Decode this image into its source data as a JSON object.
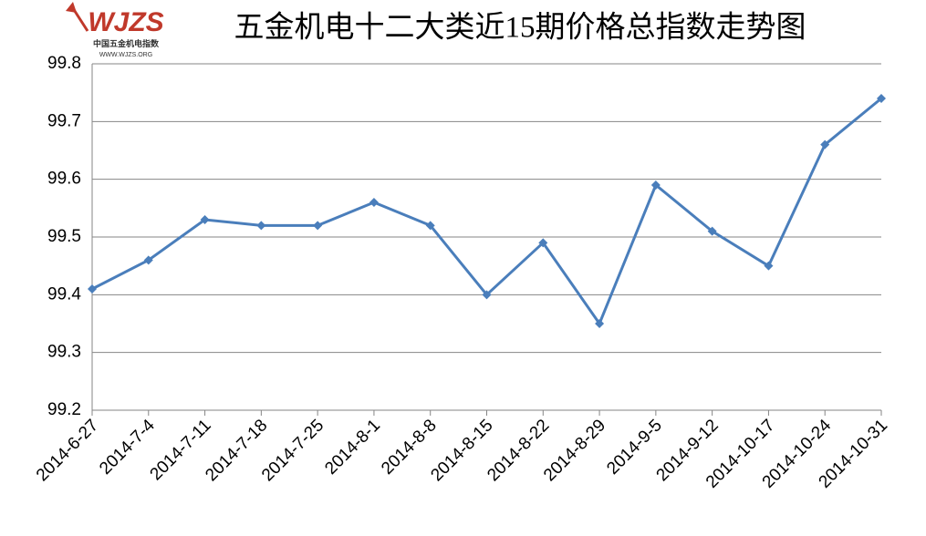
{
  "chart_data": {
    "type": "line",
    "title": "五金机电十二大类近15期价格总指数走势图",
    "logo_text": "WJZS",
    "logo_subtitle": "中国五金机电指数",
    "logo_url": "WWW.WJZS.ORG",
    "categories": [
      "2014-6-27",
      "2014-7-4",
      "2014-7-11",
      "2014-7-18",
      "2014-7-25",
      "2014-8-1",
      "2014-8-8",
      "2014-8-15",
      "2014-8-22",
      "2014-8-29",
      "2014-9-5",
      "2014-9-12",
      "2014-10-17",
      "2014-10-24",
      "2014-10-31"
    ],
    "values": [
      99.41,
      99.46,
      99.53,
      99.52,
      99.52,
      99.56,
      99.52,
      99.4,
      99.49,
      99.35,
      99.59,
      99.51,
      99.45,
      99.66,
      99.74
    ],
    "color": "#4a7ebb",
    "ylim": [
      99.2,
      99.8
    ],
    "yticks": [
      99.2,
      99.3,
      99.4,
      99.5,
      99.6,
      99.7,
      99.8
    ],
    "grid": true
  }
}
